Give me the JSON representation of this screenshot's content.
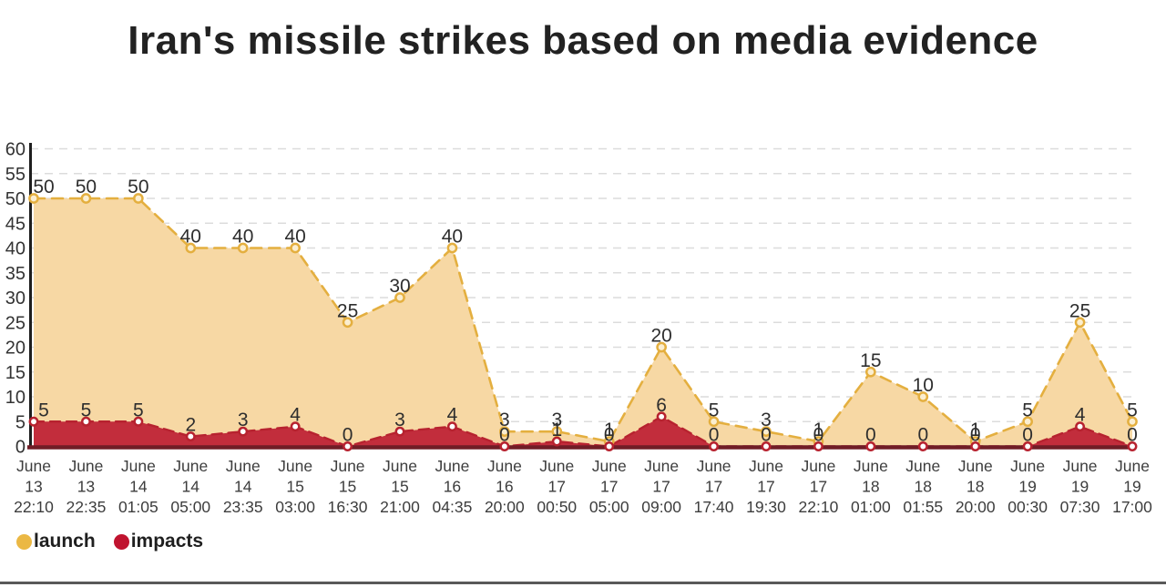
{
  "title": "Iran's missile strikes based on media evidence",
  "legend": {
    "launch_label": "launch",
    "impacts_label": "impacts"
  },
  "colors": {
    "launch_fill": "#F7D8A4",
    "launch_line": "#E4AF3F",
    "launch_marker_fill": "#FBEED0",
    "launch_dot": "#EBB844",
    "impacts_fill": "#C22D3C",
    "impacts_line": "#B7222F",
    "impacts_marker_fill": "#FFFFFF",
    "impacts_dot": "#C0132F",
    "x_axis": "#701D26",
    "y_axis": "#1E1E1E",
    "gridline": "#DCDCDC",
    "value_label": "#2E2E2E",
    "tick_label": "#3D3D3D"
  },
  "chart_data": {
    "type": "area",
    "title": "Iran's missile strikes based on media evidence",
    "xlabel": "",
    "ylabel": "",
    "ylim": [
      0,
      60
    ],
    "ytick_step": 5,
    "grid": "horizontal dashed",
    "legend_position": "bottom-left",
    "line_style": "dashed with circular markers",
    "categories": [
      "June 13 22:10",
      "June 13 22:35",
      "June 14 01:05",
      "June 14 05:00",
      "June 14 23:35",
      "June 15 03:00",
      "June 15 16:30",
      "June 15 21:00",
      "June 16 04:35",
      "June 16 20:00",
      "June 17 00:50",
      "June 17 05:00",
      "June 17 09:00",
      "June 17 17:40",
      "June 17 19:30",
      "June 17 22:10",
      "June 18 01:00",
      "June 18 01:55",
      "June 18 20:00",
      "June 19 00:30",
      "June 19 07:30",
      "June 19 17:00"
    ],
    "series": [
      {
        "name": "launch",
        "values": [
          50,
          50,
          50,
          40,
          40,
          40,
          25,
          30,
          40,
          3,
          3,
          1,
          20,
          5,
          3,
          1,
          15,
          10,
          1,
          5,
          25,
          5
        ]
      },
      {
        "name": "impacts",
        "values": [
          5,
          5,
          5,
          2,
          3,
          4,
          0,
          3,
          4,
          0,
          1,
          0,
          6,
          0,
          0,
          0,
          0,
          0,
          0,
          0,
          4,
          0
        ]
      }
    ]
  }
}
